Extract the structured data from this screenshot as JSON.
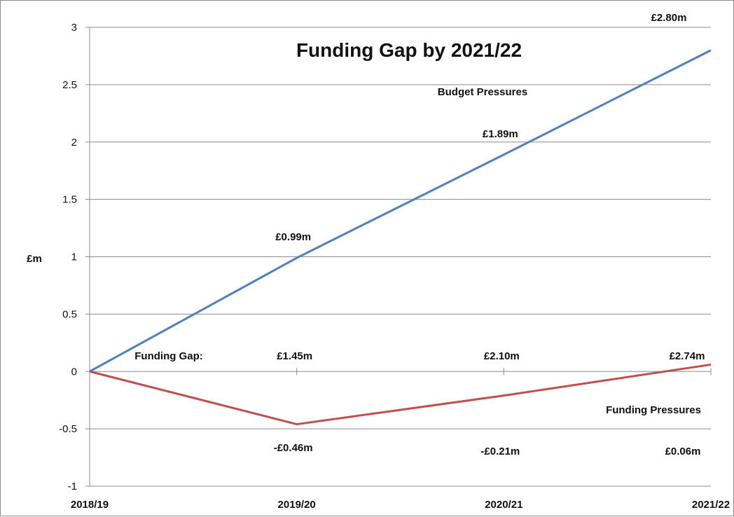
{
  "chart_data": {
    "type": "line",
    "title": "Funding Gap by 2021/22",
    "ylabel": "£m",
    "xlabel": "",
    "x": [
      "2018/19",
      "2019/20",
      "2020/21",
      "2021/22"
    ],
    "ylim": [
      -1,
      3
    ],
    "yticks": [
      "3",
      "2.5",
      "2",
      "1.5",
      "1",
      "0.5",
      "0",
      "-0.5",
      "-1"
    ],
    "grid": true,
    "series": [
      {
        "name": "Budget Pressures",
        "values": [
          0,
          0.99,
          1.89,
          2.8
        ],
        "labels": [
          "",
          "£0.99m",
          "£1.89m",
          "£2.80m"
        ],
        "color": "#4f81bd"
      },
      {
        "name": "Funding Pressures",
        "values": [
          0,
          -0.46,
          -0.21,
          0.06
        ],
        "labels": [
          "",
          "-£0.46m",
          "-£0.21m",
          "£0.06m"
        ],
        "color": "#c0504d"
      }
    ],
    "funding_gap": {
      "label": "Funding Gap:",
      "values": [
        "£1.45m",
        "£2.10m",
        "£2.74m"
      ]
    }
  }
}
